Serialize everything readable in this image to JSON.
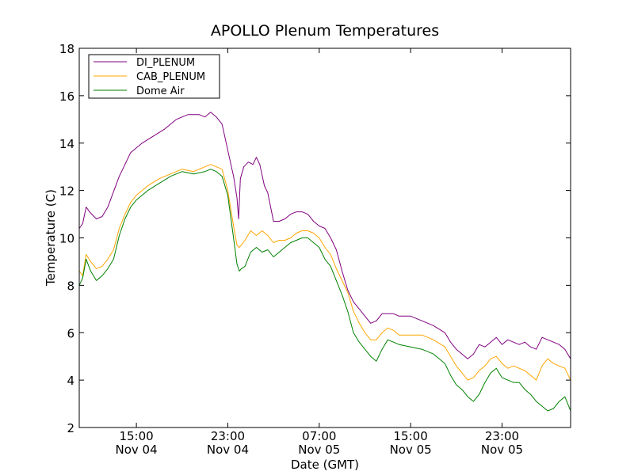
{
  "chart_data": {
    "type": "line",
    "title": "APOLLO Plenum Temperatures",
    "xlabel": "Date (GMT)",
    "ylabel": "Temperature (C)",
    "x_unit": "hours since Nov 04 10:00 GMT",
    "xlim": [
      0,
      43
    ],
    "ylim": [
      2,
      18
    ],
    "y_ticks": [
      2,
      4,
      6,
      8,
      10,
      12,
      14,
      16,
      18
    ],
    "x_ticks": [
      {
        "x": 5,
        "time": "15:00",
        "date": "Nov 04"
      },
      {
        "x": 13,
        "time": "23:00",
        "date": "Nov 04"
      },
      {
        "x": 21,
        "time": "07:00",
        "date": "Nov 05"
      },
      {
        "x": 29,
        "time": "15:00",
        "date": "Nov 05"
      },
      {
        "x": 37,
        "time": "23:00",
        "date": "Nov 05"
      }
    ],
    "legend_position": "top-left",
    "series": [
      {
        "name": "DI_PLENUM",
        "color": "#800080",
        "x": [
          0,
          0.3,
          0.6,
          0.9,
          1.5,
          2.0,
          2.5,
          3.5,
          4.5,
          5.5,
          6.5,
          7.5,
          8.5,
          9.5,
          10.5,
          11.0,
          11.5,
          12.0,
          12.5,
          13.0,
          13.5,
          13.8,
          13.95,
          14.1,
          14.4,
          14.8,
          15.2,
          15.5,
          15.8,
          16.2,
          16.5,
          17.0,
          17.5,
          18.0,
          18.5,
          19.0,
          19.5,
          20.0,
          20.5,
          21.0,
          21.5,
          22.0,
          22.5,
          23.0,
          23.5,
          24.0,
          24.5,
          25.0,
          25.5,
          26.0,
          26.5,
          27.0,
          27.5,
          28.0,
          29.0,
          30.0,
          31.0,
          32.0,
          32.5,
          33.0,
          33.5,
          34.0,
          34.5,
          35.0,
          35.5,
          36.0,
          36.5,
          37.0,
          37.5,
          38.0,
          38.5,
          39.0,
          39.5,
          40.0,
          40.5,
          41.0,
          41.5,
          42.0,
          42.5,
          43.0
        ],
        "values": [
          10.4,
          10.6,
          11.3,
          11.1,
          10.8,
          10.9,
          11.3,
          12.6,
          13.6,
          14.0,
          14.3,
          14.6,
          15.0,
          15.2,
          15.2,
          15.1,
          15.3,
          15.1,
          14.8,
          13.7,
          12.6,
          11.7,
          10.8,
          12.5,
          13.0,
          13.2,
          13.1,
          13.4,
          13.1,
          12.2,
          11.9,
          10.7,
          10.7,
          10.8,
          11.0,
          11.1,
          11.1,
          11.0,
          10.7,
          10.5,
          10.4,
          10.0,
          9.5,
          8.6,
          7.8,
          7.3,
          7.0,
          6.7,
          6.4,
          6.5,
          6.8,
          6.8,
          6.8,
          6.7,
          6.7,
          6.5,
          6.3,
          6.0,
          5.6,
          5.3,
          5.1,
          4.9,
          5.1,
          5.5,
          5.4,
          5.6,
          5.8,
          5.5,
          5.7,
          5.6,
          5.5,
          5.6,
          5.4,
          5.3,
          5.8,
          5.7,
          5.6,
          5.5,
          5.3,
          4.9
        ]
      },
      {
        "name": "CAB_PLENUM",
        "color": "#ffa500",
        "x": [
          0,
          0.3,
          0.6,
          1.0,
          1.5,
          2.0,
          2.5,
          3.0,
          3.5,
          4.0,
          4.5,
          5.0,
          6.0,
          7.0,
          8.0,
          9.0,
          10.0,
          11.0,
          11.5,
          12.0,
          12.5,
          13.0,
          13.5,
          13.8,
          14.0,
          14.2,
          14.5,
          15.0,
          15.5,
          16.0,
          16.5,
          17.0,
          17.5,
          18.0,
          18.5,
          19.0,
          19.5,
          20.0,
          20.5,
          21.0,
          21.5,
          22.0,
          22.5,
          23.0,
          23.5,
          24.0,
          24.5,
          25.0,
          25.5,
          26.0,
          26.5,
          27.0,
          27.5,
          28.0,
          29.0,
          30.0,
          31.0,
          32.0,
          32.5,
          33.0,
          33.5,
          34.0,
          34.5,
          35.0,
          35.5,
          36.0,
          36.5,
          37.0,
          37.5,
          38.0,
          38.5,
          39.0,
          39.5,
          40.0,
          40.5,
          41.0,
          41.5,
          42.0,
          42.5,
          43.0
        ],
        "values": [
          8.6,
          8.4,
          9.3,
          9.0,
          8.7,
          8.8,
          9.1,
          9.5,
          10.4,
          11.0,
          11.5,
          11.8,
          12.2,
          12.5,
          12.7,
          12.9,
          12.8,
          13.0,
          13.1,
          13.0,
          12.9,
          12.0,
          10.5,
          9.7,
          9.6,
          9.7,
          9.9,
          10.3,
          10.1,
          10.3,
          10.1,
          9.8,
          9.9,
          9.9,
          10.0,
          10.2,
          10.3,
          10.3,
          10.2,
          10.0,
          9.6,
          9.3,
          8.7,
          8.2,
          7.7,
          6.9,
          6.4,
          6.0,
          5.7,
          5.7,
          6.0,
          6.2,
          6.1,
          5.9,
          5.9,
          5.9,
          5.7,
          5.4,
          5.0,
          4.6,
          4.3,
          4.0,
          4.1,
          4.4,
          4.6,
          4.9,
          5.0,
          4.7,
          4.5,
          4.6,
          4.5,
          4.4,
          4.2,
          4.0,
          4.6,
          4.9,
          4.7,
          4.6,
          4.5,
          4.0
        ]
      },
      {
        "name": "Dome Air",
        "color": "#008000",
        "x": [
          0,
          0.3,
          0.6,
          1.0,
          1.5,
          2.0,
          2.5,
          3.0,
          3.5,
          4.0,
          4.5,
          5.0,
          6.0,
          7.0,
          8.0,
          9.0,
          10.0,
          11.0,
          11.5,
          12.0,
          12.5,
          13.0,
          13.5,
          13.8,
          14.0,
          14.2,
          14.5,
          15.0,
          15.5,
          16.0,
          16.5,
          17.0,
          17.5,
          18.0,
          18.5,
          19.0,
          19.5,
          20.0,
          20.5,
          21.0,
          21.5,
          22.0,
          22.5,
          23.0,
          23.5,
          24.0,
          24.5,
          25.0,
          25.5,
          26.0,
          26.5,
          27.0,
          27.5,
          28.0,
          29.0,
          30.0,
          31.0,
          32.0,
          32.5,
          33.0,
          33.5,
          34.0,
          34.5,
          35.0,
          35.5,
          36.0,
          36.5,
          37.0,
          37.5,
          38.0,
          38.5,
          39.0,
          39.5,
          40.0,
          40.5,
          41.0,
          41.5,
          42.0,
          42.5,
          43.0
        ],
        "values": [
          8.0,
          8.3,
          9.1,
          8.6,
          8.2,
          8.4,
          8.7,
          9.1,
          10.1,
          10.8,
          11.3,
          11.6,
          12.0,
          12.3,
          12.6,
          12.8,
          12.7,
          12.8,
          12.9,
          12.8,
          12.6,
          11.8,
          10.0,
          8.9,
          8.6,
          8.7,
          8.8,
          9.4,
          9.6,
          9.4,
          9.5,
          9.2,
          9.4,
          9.6,
          9.8,
          9.9,
          10.0,
          10.0,
          9.8,
          9.6,
          9.1,
          8.8,
          8.2,
          7.6,
          6.9,
          6.0,
          5.6,
          5.3,
          5.0,
          4.8,
          5.3,
          5.7,
          5.6,
          5.5,
          5.4,
          5.3,
          5.1,
          4.7,
          4.2,
          3.8,
          3.6,
          3.3,
          3.1,
          3.4,
          3.9,
          4.3,
          4.5,
          4.1,
          4.0,
          3.9,
          3.9,
          3.6,
          3.4,
          3.1,
          2.9,
          2.7,
          2.8,
          3.1,
          3.3,
          2.7
        ]
      }
    ]
  }
}
